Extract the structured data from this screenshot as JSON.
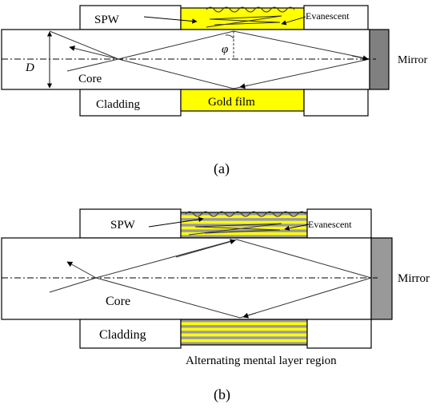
{
  "panel_a": {
    "spw": "SPW",
    "evanescent": "Evanescent",
    "core": "Core",
    "cladding": "Cladding",
    "gold_film": "Gold film",
    "mirror": "Mirror",
    "diameter": "D",
    "angle": "φ",
    "caption": "(a)",
    "colors": {
      "gold": "#ffff00",
      "mirror": "#808080"
    }
  },
  "panel_b": {
    "spw": "SPW",
    "evanescent": "Evanescent",
    "core": "Core",
    "cladding": "Cladding",
    "mirror": "Mirror",
    "layer_region": "Alternating mental layer region",
    "caption": "(b)",
    "colors": {
      "stripe_gold": "#ffff00",
      "stripe_gray": "#999999",
      "mirror": "#999999"
    }
  }
}
